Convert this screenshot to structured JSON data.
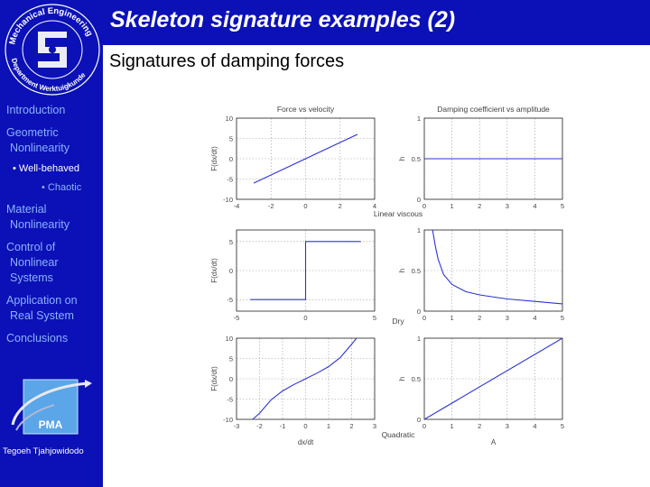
{
  "slide": {
    "title": "Skeleton signature examples (2)",
    "subtitle": "Signatures of damping forces",
    "author": "Tegoeh Tjahjowidodo"
  },
  "logo": {
    "ring_text": "Mechanical Engineering Department Werktuigkunde",
    "pma_label": "PMA"
  },
  "nav": {
    "items": [
      {
        "label": "Introduction"
      },
      {
        "label": "Geometric Nonlinearity",
        "lines": [
          "Geometric",
          " Nonlinearity"
        ]
      },
      {
        "label": "• Well-behaved"
      },
      {
        "label": "• Chaotic"
      },
      {
        "label": "Material Nonlinearity",
        "lines": [
          "Material",
          " Nonlinearity"
        ]
      },
      {
        "label": "Control of Nonlinear Systems",
        "lines": [
          "Control of",
          " Nonlinear",
          " Systems"
        ]
      },
      {
        "label": "Application on Real System",
        "lines": [
          "Application on",
          " Real System"
        ]
      },
      {
        "label": "Conclusions"
      }
    ]
  },
  "figure": {
    "left_title": "Force vs velocity",
    "right_title": "Damping coefficient vs amplitude",
    "row_labels": [
      "Linear viscous",
      "Dry",
      "Quadratic"
    ],
    "left_ylabels": [
      "F(dx/dt)",
      "F(dx/dt)",
      "F(dx/dt)"
    ],
    "right_ylabel": "h",
    "left_xlabel": "dx/dt",
    "right_xlabel": "A",
    "colors": {
      "curve": "#2b33d6",
      "grid": "#9a9a9a",
      "axis": "#222222"
    },
    "chart_data": [
      {
        "type": "line",
        "title": "Force vs velocity",
        "ylabel": "F(dx/dt)",
        "xlim": [
          -4,
          4
        ],
        "ylim": [
          -10,
          10
        ],
        "xticks": [
          -4,
          -2,
          0,
          2,
          4
        ],
        "yticks": [
          -10,
          -5,
          0,
          5,
          10
        ],
        "series": [
          {
            "x": [
              -3,
              3
            ],
            "y": [
              -6,
              6
            ]
          }
        ]
      },
      {
        "type": "line",
        "title": "Damping coefficient vs amplitude",
        "ylabel": "h",
        "xlim": [
          0,
          5
        ],
        "ylim": [
          0,
          1
        ],
        "xticks": [
          0,
          1,
          2,
          3,
          4,
          5
        ],
        "yticks": [
          0,
          0.5,
          1
        ],
        "series": [
          {
            "x": [
              0,
              5
            ],
            "y": [
              0.5,
              0.5
            ]
          }
        ]
      },
      {
        "type": "line",
        "ylabel": "F(dx/dt)",
        "xlim": [
          -5,
          5
        ],
        "ylim": [
          -7,
          7
        ],
        "xticks": [
          -5,
          0,
          5
        ],
        "yticks": [
          -5,
          0,
          5
        ],
        "series": [
          {
            "x": [
              -4,
              0,
              0,
              4
            ],
            "y": [
              -5,
              -5,
              5,
              5
            ]
          }
        ]
      },
      {
        "type": "line",
        "ylabel": "h",
        "xlim": [
          0,
          5
        ],
        "ylim": [
          0,
          1
        ],
        "xticks": [
          0,
          1,
          2,
          3,
          4,
          5
        ],
        "yticks": [
          0,
          0.5,
          1
        ],
        "series": [
          {
            "x": [
              0.3,
              0.4,
              0.5,
              0.7,
              1,
              1.5,
              2,
              3,
              4,
              5
            ],
            "y": [
              1,
              0.8,
              0.64,
              0.45,
              0.33,
              0.24,
              0.2,
              0.15,
              0.12,
              0.09
            ]
          }
        ]
      },
      {
        "type": "line",
        "xlabel": "dx/dt",
        "ylabel": "F(dx/dt)",
        "xlim": [
          -3,
          3
        ],
        "ylim": [
          -10,
          10
        ],
        "xticks": [
          -3,
          -2,
          -1,
          0,
          1,
          2,
          3
        ],
        "yticks": [
          -10,
          -5,
          0,
          5,
          10
        ],
        "series": [
          {
            "x": [
              -2.3,
              -2,
              -1.5,
              -1,
              -0.5,
              0,
              0.5,
              1,
              1.5,
              2,
              2.5,
              2.8
            ],
            "y": [
              -10,
              -8.5,
              -5.2,
              -3,
              -1.4,
              0,
              1.4,
              3,
              5.2,
              8.5,
              12,
              15
            ]
          }
        ]
      },
      {
        "type": "line",
        "xlabel": "A",
        "ylabel": "h",
        "xlim": [
          0,
          5
        ],
        "ylim": [
          0,
          1
        ],
        "xticks": [
          0,
          1,
          2,
          3,
          4,
          5
        ],
        "yticks": [
          0,
          0.5,
          1
        ],
        "series": [
          {
            "x": [
              0,
              5
            ],
            "y": [
              0,
              1
            ]
          }
        ]
      }
    ]
  }
}
